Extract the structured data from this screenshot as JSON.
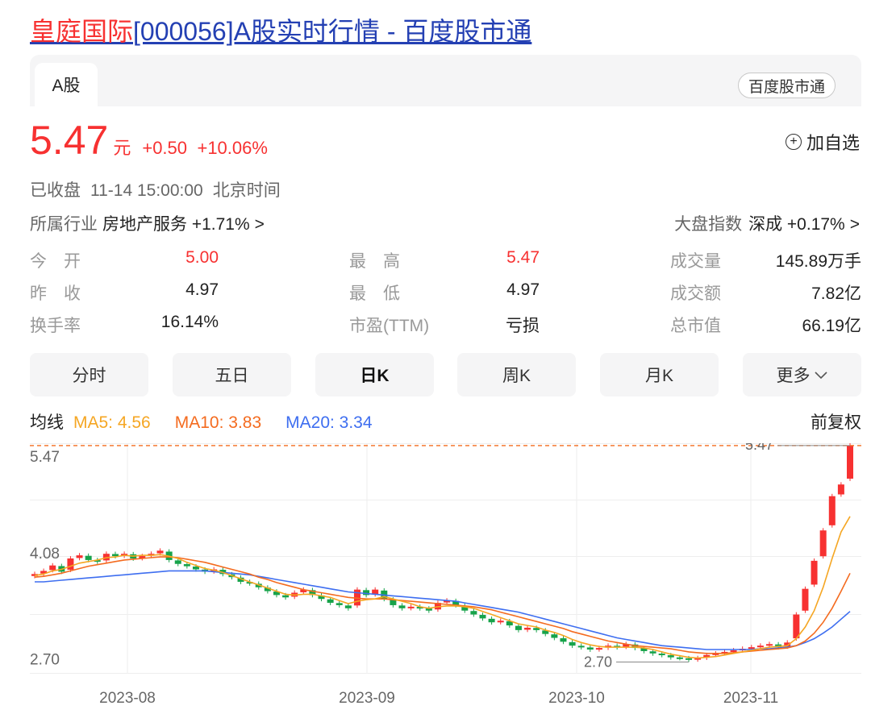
{
  "page": {
    "title_highlight": "皇庭国际",
    "title_rest": "[000056]A股实时行情 - 百度股市通"
  },
  "tabs": {
    "market": "A股",
    "badge": "百度股市通"
  },
  "quote": {
    "price": "5.47",
    "unit": "元",
    "change": "+0.50",
    "change_pct": "+10.06%",
    "add_label": "加自选",
    "status": "已收盘",
    "time": "11-14 15:00:00",
    "timezone": "北京时间"
  },
  "industry": {
    "label": "所属行业",
    "name": "房地产服务",
    "change": "+1.71%"
  },
  "index": {
    "label": "大盘指数",
    "name": "深成",
    "change": "+0.17%"
  },
  "stats": [
    [
      {
        "label": "今　开",
        "value": "5.00",
        "color": "red"
      },
      {
        "label": "最　高",
        "value": "5.47",
        "color": "red"
      },
      {
        "label": "成交量",
        "value": "145.89万手",
        "color": "dark"
      }
    ],
    [
      {
        "label": "昨　收",
        "value": "4.97",
        "color": "dark"
      },
      {
        "label": "最　低",
        "value": "4.97",
        "color": "dark"
      },
      {
        "label": "成交额",
        "value": "7.82亿",
        "color": "dark"
      }
    ],
    [
      {
        "label": "换手率",
        "value": "16.14%",
        "color": "dark"
      },
      {
        "label": "市盈(TTM)",
        "value": "亏损",
        "color": "dark"
      },
      {
        "label": "总市值",
        "value": "66.19亿",
        "color": "dark"
      }
    ]
  ],
  "ktabs": [
    "分时",
    "五日",
    "日K",
    "周K",
    "月K",
    "更多"
  ],
  "ktab_active": "日K",
  "ma": {
    "label": "均线",
    "ma5": "MA5: 4.56",
    "ma10": "MA10: 3.83",
    "ma20": "MA20: 3.34",
    "adjust": "前复权"
  },
  "colors": {
    "up": "#f73131",
    "down": "#17a34a",
    "ma5": "#f5a623",
    "ma10": "#f46b1f",
    "ma20": "#3e6ef0",
    "link": "#2440b3"
  },
  "chart_data": {
    "type": "candlestick",
    "y_ticks": [
      "5.47",
      "4.08",
      "2.70"
    ],
    "x_ticks": [
      "2023-08",
      "2023-09",
      "2023-10",
      "2023-11"
    ],
    "max_label": "5.47",
    "min_label": "2.70",
    "ylim": [
      2.55,
      5.5
    ],
    "closes": [
      3.82,
      3.86,
      3.93,
      3.85,
      4.02,
      4.06,
      4.0,
      3.98,
      4.08,
      4.05,
      4.08,
      4.02,
      4.05,
      4.08,
      4.12,
      4.0,
      3.95,
      3.92,
      3.88,
      3.85,
      3.88,
      3.82,
      3.78,
      3.72,
      3.7,
      3.65,
      3.6,
      3.55,
      3.52,
      3.58,
      3.62,
      3.55,
      3.5,
      3.45,
      3.42,
      3.38,
      3.62,
      3.55,
      3.62,
      3.5,
      3.42,
      3.38,
      3.4,
      3.38,
      3.35,
      3.45,
      3.48,
      3.42,
      3.35,
      3.3,
      3.25,
      3.2,
      3.22,
      3.16,
      3.1,
      3.13,
      3.1,
      3.05,
      3.0,
      2.95,
      2.9,
      2.88,
      2.85,
      2.87,
      2.9,
      2.88,
      2.92,
      2.87,
      2.83,
      2.8,
      2.78,
      2.75,
      2.74,
      2.72,
      2.74,
      2.78,
      2.8,
      2.82,
      2.84,
      2.86,
      2.88,
      2.9,
      2.92,
      2.88,
      2.94,
      3.3,
      3.63,
      3.99,
      4.38,
      4.82,
      4.97,
      5.47
    ],
    "ma5": [
      3.8,
      3.82,
      3.86,
      3.88,
      3.92,
      3.96,
      3.98,
      4.0,
      4.03,
      4.04,
      4.06,
      4.05,
      4.06,
      4.06,
      4.07,
      4.05,
      4.02,
      3.97,
      3.93,
      3.89,
      3.87,
      3.84,
      3.8,
      3.76,
      3.72,
      3.68,
      3.64,
      3.6,
      3.56,
      3.55,
      3.56,
      3.56,
      3.54,
      3.52,
      3.48,
      3.44,
      3.47,
      3.49,
      3.5,
      3.53,
      3.5,
      3.47,
      3.44,
      3.4,
      3.38,
      3.4,
      3.41,
      3.41,
      3.4,
      3.38,
      3.34,
      3.3,
      3.26,
      3.22,
      3.18,
      3.16,
      3.14,
      3.1,
      3.07,
      3.03,
      2.98,
      2.94,
      2.91,
      2.89,
      2.88,
      2.88,
      2.88,
      2.88,
      2.87,
      2.85,
      2.82,
      2.79,
      2.77,
      2.75,
      2.74,
      2.75,
      2.76,
      2.78,
      2.8,
      2.82,
      2.84,
      2.86,
      2.88,
      2.89,
      2.9,
      2.99,
      3.14,
      3.35,
      3.65,
      4.02,
      4.36,
      4.56
    ],
    "ma10": [
      3.78,
      3.79,
      3.81,
      3.83,
      3.86,
      3.89,
      3.92,
      3.94,
      3.96,
      3.98,
      4.0,
      4.01,
      4.02,
      4.03,
      4.04,
      4.04,
      4.03,
      4.01,
      3.99,
      3.97,
      3.94,
      3.91,
      3.88,
      3.85,
      3.82,
      3.78,
      3.75,
      3.71,
      3.68,
      3.65,
      3.62,
      3.6,
      3.58,
      3.56,
      3.54,
      3.52,
      3.51,
      3.5,
      3.5,
      3.5,
      3.49,
      3.48,
      3.47,
      3.46,
      3.45,
      3.44,
      3.43,
      3.42,
      3.41,
      3.4,
      3.38,
      3.36,
      3.33,
      3.3,
      3.27,
      3.24,
      3.21,
      3.18,
      3.15,
      3.12,
      3.08,
      3.05,
      3.02,
      2.99,
      2.96,
      2.94,
      2.92,
      2.9,
      2.89,
      2.88,
      2.87,
      2.86,
      2.84,
      2.82,
      2.81,
      2.8,
      2.8,
      2.8,
      2.81,
      2.82,
      2.83,
      2.84,
      2.85,
      2.86,
      2.87,
      2.9,
      2.96,
      3.06,
      3.2,
      3.38,
      3.6,
      3.83
    ],
    "ma20": [
      3.72,
      3.72,
      3.73,
      3.74,
      3.75,
      3.76,
      3.77,
      3.78,
      3.79,
      3.8,
      3.81,
      3.82,
      3.83,
      3.84,
      3.85,
      3.86,
      3.86,
      3.86,
      3.86,
      3.86,
      3.85,
      3.84,
      3.83,
      3.82,
      3.81,
      3.79,
      3.77,
      3.75,
      3.73,
      3.71,
      3.69,
      3.67,
      3.65,
      3.63,
      3.61,
      3.59,
      3.58,
      3.57,
      3.56,
      3.55,
      3.54,
      3.53,
      3.52,
      3.51,
      3.5,
      3.49,
      3.48,
      3.47,
      3.45,
      3.43,
      3.41,
      3.39,
      3.37,
      3.35,
      3.33,
      3.3,
      3.27,
      3.24,
      3.21,
      3.18,
      3.15,
      3.12,
      3.09,
      3.06,
      3.03,
      3.0,
      2.98,
      2.96,
      2.94,
      2.92,
      2.9,
      2.89,
      2.88,
      2.87,
      2.86,
      2.85,
      2.85,
      2.85,
      2.85,
      2.85,
      2.85,
      2.86,
      2.86,
      2.87,
      2.88,
      2.9,
      2.94,
      2.99,
      3.06,
      3.14,
      3.24,
      3.34
    ]
  }
}
